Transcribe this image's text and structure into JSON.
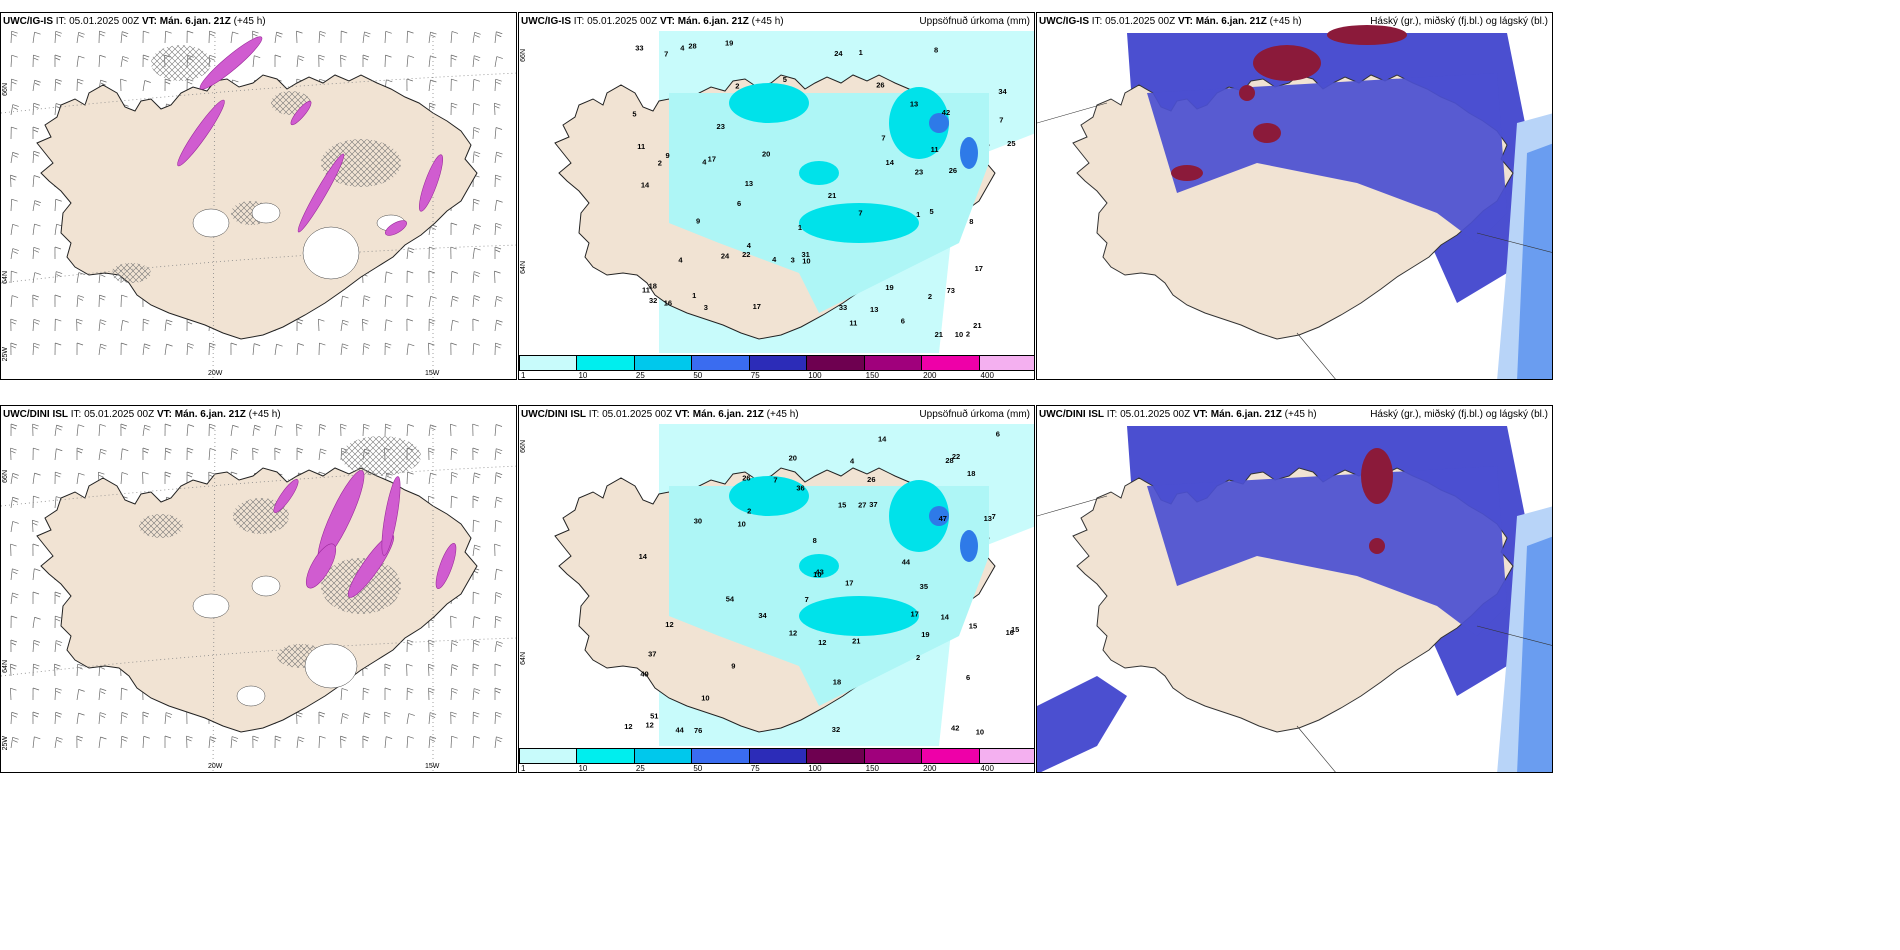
{
  "panels": [
    {
      "model": "UWC/IG-IS",
      "it": "IT: 05.01.2025 00Z",
      "vt_label": "VT:",
      "vt": "Mán. 6.jan. 21Z",
      "lead": "(+45 h)",
      "right_title": "",
      "lat_labels": [
        "66N",
        "64N",
        "25W"
      ],
      "lon_labels": [
        "20W",
        "15W"
      ]
    },
    {
      "model": "UWC/IG-IS",
      "it": "IT: 05.01.2025 00Z",
      "vt_label": "VT:",
      "vt": "Mán. 6.jan. 21Z",
      "lead": "(+45 h)",
      "right_title": "Uppsöfnuð úrkoma (mm)",
      "lat_labels": [
        "66N",
        "64N"
      ],
      "lon_labels": []
    },
    {
      "model": "UWC/IG-IS",
      "it": "IT: 05.01.2025 00Z",
      "vt_label": "VT:",
      "vt": "Mán. 6.jan. 21Z",
      "lead": "(+45 h)",
      "right_title": "Háský (gr.), miðský (fj.bl.) og lágský (bl.)",
      "lat_labels": [],
      "lon_labels": []
    },
    {
      "model": "UWC/DINI ISL",
      "it": "IT: 05.01.2025 00Z",
      "vt_label": "VT:",
      "vt": "Mán. 6.jan. 21Z",
      "lead": "(+45 h)",
      "right_title": "",
      "lat_labels": [
        "66N",
        "64N",
        "25W"
      ],
      "lon_labels": [
        "20W",
        "15W"
      ]
    },
    {
      "model": "UWC/DINI ISL",
      "it": "IT: 05.01.2025 00Z",
      "vt_label": "VT:",
      "vt": "Mán. 6.jan. 21Z",
      "lead": "(+45 h)",
      "right_title": "Uppsöfnuð úrkoma (mm)",
      "lat_labels": [
        "66N",
        "64N"
      ],
      "lon_labels": []
    },
    {
      "model": "UWC/DINI ISL",
      "it": "IT: 05.01.2025 00Z",
      "vt_label": "VT:",
      "vt": "Mán. 6.jan. 21Z",
      "lead": "(+45 h)",
      "right_title": "Háský (gr.), miðský (fj.bl.) og lágský (bl.)",
      "lat_labels": [],
      "lon_labels": []
    }
  ],
  "colorbar": {
    "ticks": [
      "1",
      "10",
      "25",
      "50",
      "75",
      "100",
      "150",
      "200",
      "400"
    ],
    "colors": [
      "#c8fbfb",
      "#00eeee",
      "#00c8ec",
      "#3a6cf0",
      "#2c2cb8",
      "#6e0050",
      "#a0007c",
      "#ee00a8",
      "#f4b0f0"
    ]
  },
  "precip_values_top": [
    "1",
    "4",
    "4",
    "5",
    "2",
    "2",
    "3",
    "6",
    "22",
    "23",
    "26",
    "24",
    "33",
    "21",
    "13",
    "19",
    "21",
    "25",
    "34",
    "20",
    "10",
    "17",
    "13",
    "24",
    "73",
    "14",
    "33",
    "18",
    "42",
    "11",
    "4",
    "4",
    "16",
    "17",
    "13",
    "11",
    "9",
    "28",
    "9",
    "17",
    "14",
    "21",
    "8",
    "6",
    "10",
    "32",
    "31",
    "23",
    "19",
    "26",
    "11",
    "11",
    "7",
    "8",
    "7",
    "7",
    "3",
    "7",
    "4",
    "1",
    "1",
    "5",
    "5",
    "1",
    "2",
    "2"
  ],
  "precip_values_bottom": [
    "8",
    "10",
    "19",
    "32",
    "35",
    "7",
    "34",
    "43",
    "42",
    "54",
    "36",
    "30",
    "26",
    "6",
    "6",
    "2",
    "2",
    "10",
    "16",
    "13",
    "18",
    "37",
    "14",
    "76",
    "49",
    "12",
    "12",
    "21",
    "10",
    "47",
    "15",
    "37",
    "20",
    "9",
    "17",
    "44",
    "12",
    "27",
    "15",
    "7",
    "12",
    "4",
    "12",
    "26",
    "22",
    "17",
    "28",
    "51",
    "44",
    "18",
    "14",
    "10",
    "14",
    "15",
    "7"
  ],
  "cloud_colors": {
    "high": "#8b1a3a",
    "mid": "#4b4fd0",
    "low": "#6a9df0",
    "faint": "#b8d4f8"
  },
  "land_color": "#f1e3d3",
  "sea_precip_color": "#c8fbfb"
}
